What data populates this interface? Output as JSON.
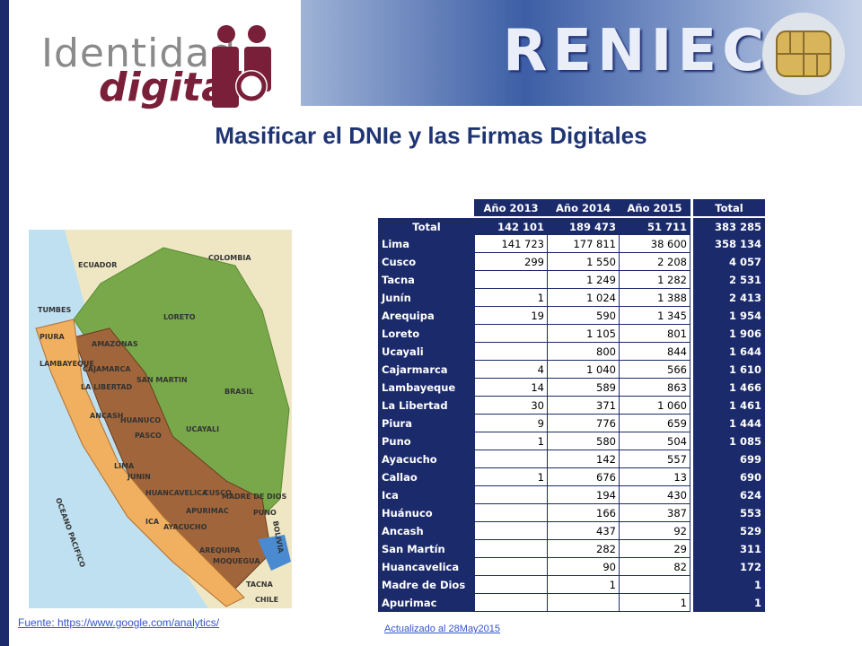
{
  "logo": {
    "line1": "Identidad",
    "line2": "digital"
  },
  "banner": {
    "brand": "RENIEC"
  },
  "title": "Masificar el DNIe  y las Firmas Digitales",
  "map_labels": [
    "ECUADOR",
    "COLOMBIA",
    "BRASIL",
    "BOLIVIA",
    "CHILE",
    "OCEANO PACIFICO",
    "TUMBES",
    "PIURA",
    "LAMBAYEQUE",
    "CAJAMARCA",
    "LA LIBERTAD",
    "ANCASH",
    "HUANUCO",
    "PASCO",
    "LIMA",
    "JUNIN",
    "HUANCAVELICA",
    "ICA",
    "AYACUCHO",
    "APURIMAC",
    "CUSCO",
    "AREQUIPA",
    "MOQUEGUA",
    "TACNA",
    "PUNO",
    "MADRE DE DIOS",
    "UCAYALI",
    "LORETO",
    "SAN MARTIN",
    "AMAZONAS"
  ],
  "source": "Fuente: https://www.google.com/analytics/",
  "updated": "Actualizado al 28May2015",
  "table": {
    "columns": [
      "Año 2013",
      "Año 2014",
      "Año 2015",
      "Total"
    ],
    "total_row": [
      "Total",
      "142 101",
      "189 473",
      "51 711",
      "383 285"
    ],
    "rows": [
      [
        "Lima",
        "141 723",
        "177 811",
        "38 600",
        "358 134"
      ],
      [
        "Cusco",
        "299",
        "1 550",
        "2 208",
        "4 057"
      ],
      [
        "Tacna",
        null,
        "1 249",
        "1 282",
        "2 531"
      ],
      [
        "Junín",
        "1",
        "1 024",
        "1 388",
        "2 413"
      ],
      [
        "Arequipa",
        "19",
        "590",
        "1 345",
        "1 954"
      ],
      [
        "Loreto",
        null,
        "1 105",
        "801",
        "1 906"
      ],
      [
        "Ucayali",
        null,
        "800",
        "844",
        "1 644"
      ],
      [
        "Cajarmarca",
        "4",
        "1 040",
        "566",
        "1 610"
      ],
      [
        "Lambayeque",
        "14",
        "589",
        "863",
        "1 466"
      ],
      [
        "La Libertad",
        "30",
        "371",
        "1 060",
        "1 461"
      ],
      [
        "Piura",
        "9",
        "776",
        "659",
        "1 444"
      ],
      [
        "Puno",
        "1",
        "580",
        "504",
        "1 085"
      ],
      [
        "Ayacucho",
        null,
        "142",
        "557",
        "699"
      ],
      [
        "Callao",
        "1",
        "676",
        "13",
        "690"
      ],
      [
        "Ica",
        null,
        "194",
        "430",
        "624"
      ],
      [
        "Huánuco",
        null,
        "166",
        "387",
        "553"
      ],
      [
        "Ancash",
        null,
        "437",
        "92",
        "529"
      ],
      [
        "San Martín",
        null,
        "282",
        "29",
        "311"
      ],
      [
        "Huancavelica",
        null,
        "90",
        "82",
        "172"
      ],
      [
        "Madre de Dios",
        null,
        "1",
        null,
        "1"
      ],
      [
        "Apurimac",
        null,
        null,
        "1",
        "1"
      ]
    ]
  }
}
